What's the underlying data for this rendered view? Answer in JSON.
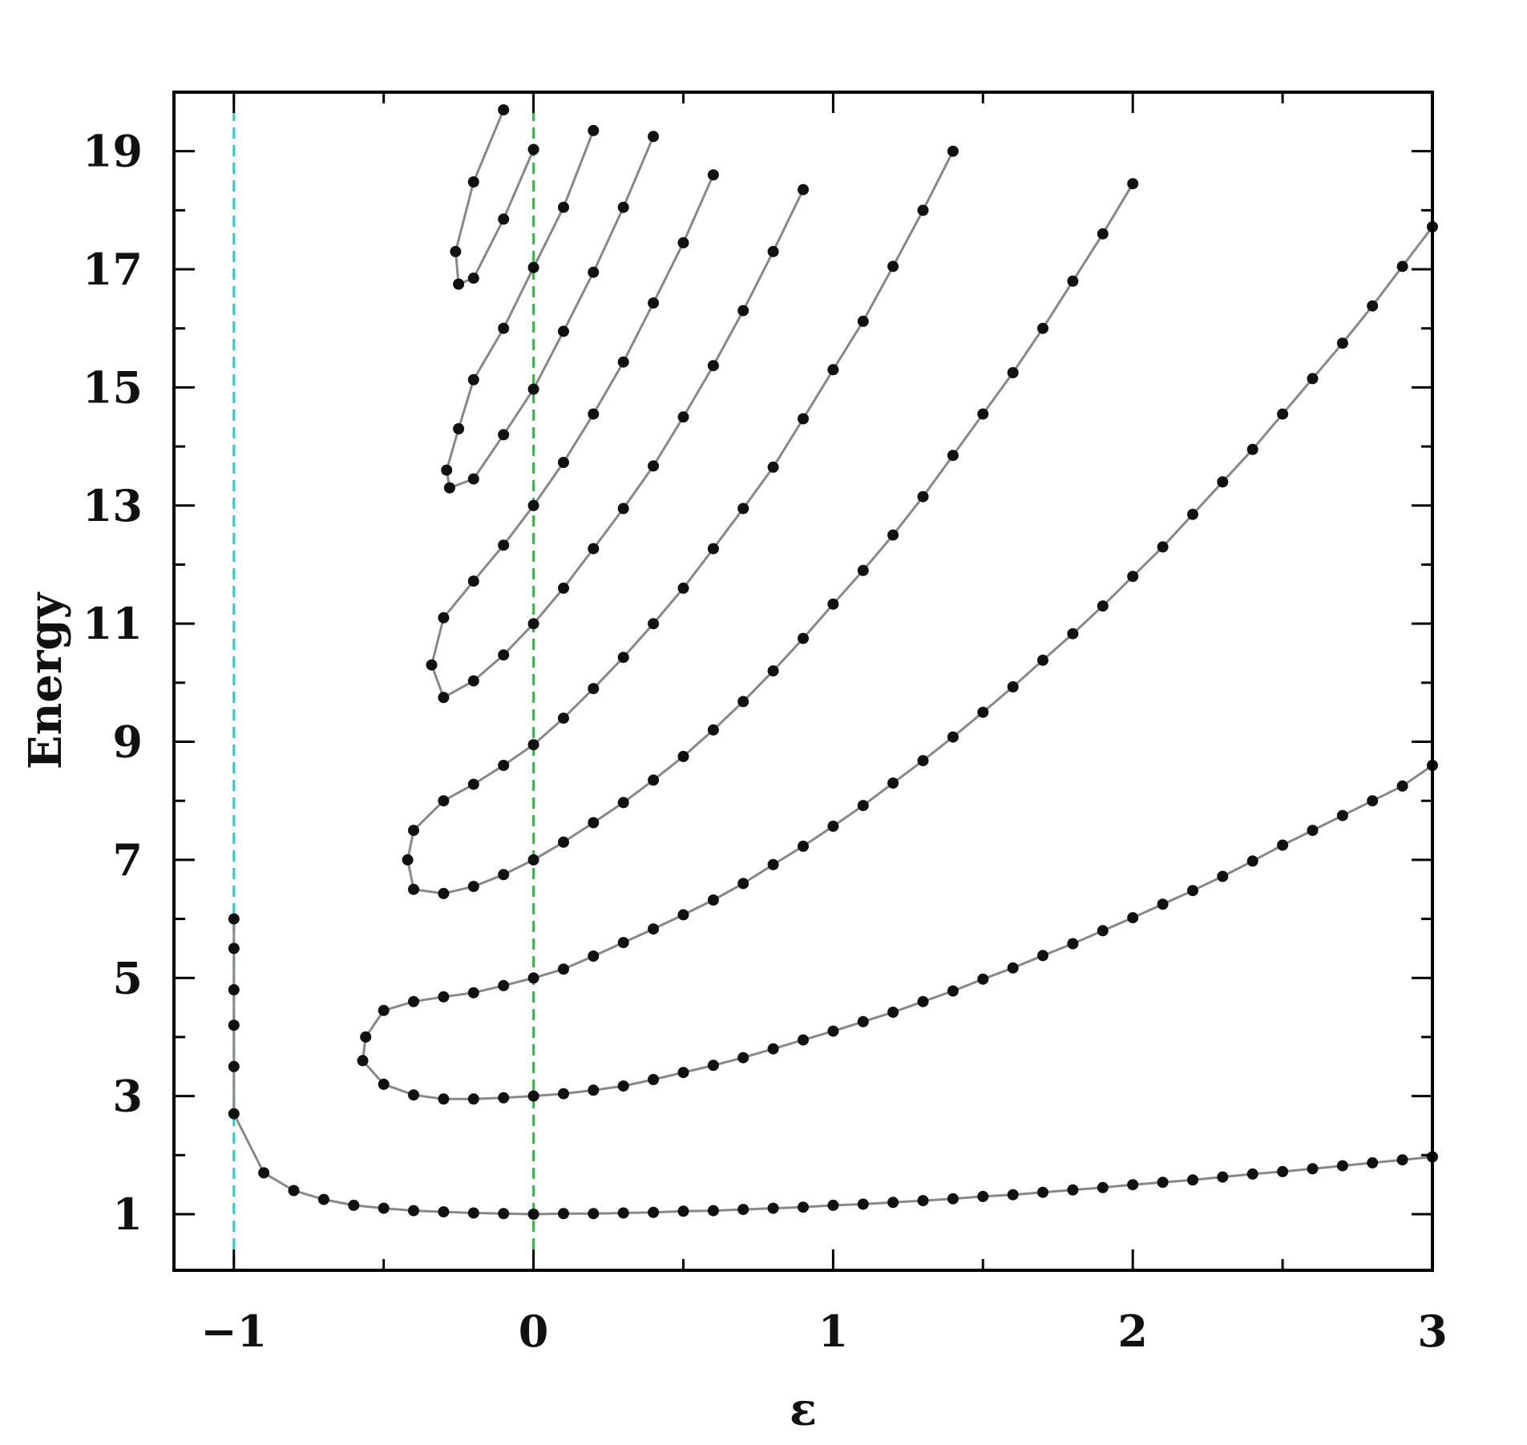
{
  "chart_data": {
    "type": "scatter",
    "xlabel": "ε",
    "ylabel": "Energy",
    "xlim": [
      -1.2,
      3.0
    ],
    "ylim": [
      0.05,
      20.0
    ],
    "x_ticks": [
      "−1",
      "0",
      "1",
      "2",
      "3"
    ],
    "y_ticks": [
      "1",
      "3",
      "5",
      "7",
      "9",
      "11",
      "13",
      "15",
      "17",
      "19"
    ],
    "grid": false,
    "legend": "none",
    "reference_lines": [
      {
        "x": -1,
        "style": "dashed",
        "color": "#33c7c7"
      },
      {
        "x": 0,
        "style": "dashed",
        "color": "#3bb54a"
      }
    ],
    "colors": {
      "marker": "#111111",
      "curve": "#888888",
      "frame": "#000000"
    },
    "series": [
      {
        "points": [
          [
            -1,
            6.0
          ],
          [
            -1,
            5.5
          ],
          [
            -1,
            4.8
          ],
          [
            -1,
            4.2
          ],
          [
            -1,
            3.5
          ],
          [
            -1,
            2.7
          ],
          [
            -0.9,
            1.7
          ],
          [
            -0.8,
            1.4
          ],
          [
            -0.7,
            1.25
          ],
          [
            -0.6,
            1.15
          ],
          [
            -0.5,
            1.1
          ],
          [
            -0.4,
            1.06
          ],
          [
            -0.3,
            1.04
          ],
          [
            -0.2,
            1.02
          ],
          [
            -0.1,
            1.01
          ],
          [
            0,
            1.0
          ],
          [
            0.1,
            1.01
          ],
          [
            0.2,
            1.01
          ],
          [
            0.3,
            1.02
          ],
          [
            0.4,
            1.03
          ],
          [
            0.5,
            1.05
          ],
          [
            0.6,
            1.06
          ],
          [
            0.7,
            1.08
          ],
          [
            0.8,
            1.1
          ],
          [
            0.9,
            1.12
          ],
          [
            1.0,
            1.15
          ],
          [
            1.1,
            1.17
          ],
          [
            1.2,
            1.2
          ],
          [
            1.3,
            1.23
          ],
          [
            1.4,
            1.26
          ],
          [
            1.5,
            1.3
          ],
          [
            1.6,
            1.33
          ],
          [
            1.7,
            1.37
          ],
          [
            1.8,
            1.41
          ],
          [
            1.9,
            1.45
          ],
          [
            2.0,
            1.5
          ],
          [
            2.1,
            1.54
          ],
          [
            2.2,
            1.58
          ],
          [
            2.3,
            1.63
          ],
          [
            2.4,
            1.68
          ],
          [
            2.5,
            1.72
          ],
          [
            2.6,
            1.77
          ],
          [
            2.7,
            1.82
          ],
          [
            2.8,
            1.87
          ],
          [
            2.9,
            1.92
          ],
          [
            3.0,
            1.97
          ]
        ]
      },
      {
        "points": [
          [
            3.0,
            8.6
          ],
          [
            2.9,
            8.25
          ],
          [
            2.8,
            8.0
          ],
          [
            2.7,
            7.75
          ],
          [
            2.6,
            7.5
          ],
          [
            2.5,
            7.25
          ],
          [
            2.4,
            6.98
          ],
          [
            2.3,
            6.72
          ],
          [
            2.2,
            6.48
          ],
          [
            2.1,
            6.25
          ],
          [
            2.0,
            6.02
          ],
          [
            1.9,
            5.8
          ],
          [
            1.8,
            5.58
          ],
          [
            1.7,
            5.38
          ],
          [
            1.6,
            5.17
          ],
          [
            1.5,
            4.98
          ],
          [
            1.4,
            4.78
          ],
          [
            1.3,
            4.6
          ],
          [
            1.2,
            4.42
          ],
          [
            1.1,
            4.26
          ],
          [
            1.0,
            4.1
          ],
          [
            0.9,
            3.95
          ],
          [
            0.8,
            3.8
          ],
          [
            0.7,
            3.65
          ],
          [
            0.6,
            3.52
          ],
          [
            0.5,
            3.4
          ],
          [
            0.4,
            3.28
          ],
          [
            0.3,
            3.17
          ],
          [
            0.2,
            3.1
          ],
          [
            0.1,
            3.04
          ],
          [
            0,
            3.0
          ],
          [
            -0.1,
            2.97
          ],
          [
            -0.2,
            2.95
          ],
          [
            -0.3,
            2.95
          ],
          [
            -0.4,
            3.02
          ],
          [
            -0.5,
            3.2
          ],
          [
            -0.57,
            3.6
          ],
          [
            -0.56,
            4.0
          ],
          [
            -0.5,
            4.45
          ],
          [
            -0.4,
            4.6
          ],
          [
            -0.3,
            4.68
          ],
          [
            -0.2,
            4.75
          ],
          [
            -0.1,
            4.87
          ],
          [
            0,
            5.0
          ],
          [
            0.1,
            5.15
          ],
          [
            0.2,
            5.37
          ],
          [
            0.3,
            5.6
          ],
          [
            0.4,
            5.83
          ],
          [
            0.5,
            6.07
          ],
          [
            0.6,
            6.32
          ],
          [
            0.7,
            6.6
          ],
          [
            0.8,
            6.92
          ],
          [
            0.9,
            7.23
          ],
          [
            1.0,
            7.57
          ],
          [
            1.1,
            7.92
          ],
          [
            1.2,
            8.3
          ],
          [
            1.3,
            8.68
          ],
          [
            1.4,
            9.08
          ],
          [
            1.5,
            9.5
          ],
          [
            1.6,
            9.93
          ],
          [
            1.7,
            10.38
          ],
          [
            1.8,
            10.83
          ],
          [
            1.9,
            11.3
          ],
          [
            2.0,
            11.8
          ],
          [
            2.1,
            12.3
          ],
          [
            2.2,
            12.85
          ],
          [
            2.3,
            13.4
          ],
          [
            2.4,
            13.95
          ],
          [
            2.5,
            14.55
          ],
          [
            2.6,
            15.15
          ],
          [
            2.7,
            15.75
          ],
          [
            2.8,
            16.38
          ],
          [
            2.9,
            17.05
          ],
          [
            3.0,
            17.72
          ]
        ]
      },
      {
        "points": [
          [
            1.4,
            19.0
          ],
          [
            1.3,
            18.0
          ],
          [
            1.2,
            17.05
          ],
          [
            1.1,
            16.12
          ],
          [
            1.0,
            15.3
          ],
          [
            0.9,
            14.47
          ],
          [
            0.8,
            13.65
          ],
          [
            0.7,
            12.95
          ],
          [
            0.6,
            12.27
          ],
          [
            0.5,
            11.6
          ],
          [
            0.4,
            11.0
          ],
          [
            0.3,
            10.43
          ],
          [
            0.2,
            9.9
          ],
          [
            0.1,
            9.4
          ],
          [
            0,
            8.95
          ],
          [
            -0.1,
            8.6
          ],
          [
            -0.2,
            8.28
          ],
          [
            -0.3,
            8.0
          ],
          [
            -0.4,
            7.5
          ],
          [
            -0.42,
            7.0
          ],
          [
            -0.4,
            6.5
          ],
          [
            -0.3,
            6.43
          ],
          [
            -0.2,
            6.55
          ],
          [
            -0.1,
            6.75
          ],
          [
            0,
            7.0
          ],
          [
            0.1,
            7.3
          ],
          [
            0.2,
            7.63
          ],
          [
            0.3,
            7.97
          ],
          [
            0.4,
            8.35
          ],
          [
            0.5,
            8.75
          ],
          [
            0.6,
            9.2
          ],
          [
            0.7,
            9.68
          ],
          [
            0.8,
            10.2
          ],
          [
            0.9,
            10.75
          ],
          [
            1.0,
            11.33
          ],
          [
            1.1,
            11.9
          ],
          [
            1.2,
            12.5
          ],
          [
            1.3,
            13.15
          ],
          [
            1.4,
            13.85
          ],
          [
            1.5,
            14.55
          ],
          [
            1.6,
            15.25
          ],
          [
            1.7,
            16.0
          ],
          [
            1.8,
            16.8
          ],
          [
            1.9,
            17.6
          ],
          [
            2.0,
            18.45
          ]
        ]
      },
      {
        "points": [
          [
            0.9,
            18.35
          ],
          [
            0.8,
            17.3
          ],
          [
            0.7,
            16.3
          ],
          [
            0.6,
            15.37
          ],
          [
            0.5,
            14.5
          ],
          [
            0.4,
            13.67
          ],
          [
            0.3,
            12.95
          ],
          [
            0.2,
            12.27
          ],
          [
            0.1,
            11.6
          ],
          [
            0,
            11.0
          ],
          [
            -0.1,
            10.47
          ],
          [
            -0.2,
            10.03
          ],
          [
            -0.3,
            9.75
          ],
          [
            -0.34,
            10.3
          ],
          [
            -0.3,
            11.1
          ],
          [
            -0.2,
            11.72
          ],
          [
            -0.1,
            12.33
          ],
          [
            0,
            13.0
          ],
          [
            0.1,
            13.73
          ],
          [
            0.2,
            14.55
          ],
          [
            0.3,
            15.43
          ],
          [
            0.4,
            16.43
          ],
          [
            0.5,
            17.45
          ],
          [
            0.6,
            18.6
          ]
        ]
      },
      {
        "points": [
          [
            0.4,
            19.25
          ],
          [
            0.3,
            18.05
          ],
          [
            0.2,
            16.95
          ],
          [
            0.1,
            15.95
          ],
          [
            0,
            14.97
          ],
          [
            -0.1,
            14.2
          ],
          [
            -0.2,
            13.45
          ],
          [
            -0.28,
            13.3
          ],
          [
            -0.29,
            13.6
          ],
          [
            -0.25,
            14.3
          ],
          [
            -0.2,
            15.13
          ],
          [
            -0.1,
            16.0
          ],
          [
            0,
            17.03
          ],
          [
            0.1,
            18.05
          ],
          [
            0.2,
            19.35
          ]
        ]
      },
      {
        "points": [
          [
            -0.1,
            19.7
          ],
          [
            -0.2,
            18.48
          ],
          [
            -0.26,
            17.3
          ],
          [
            -0.25,
            16.75
          ],
          [
            -0.2,
            16.85
          ],
          [
            -0.1,
            17.85
          ],
          [
            0,
            19.03
          ]
        ]
      }
    ]
  }
}
